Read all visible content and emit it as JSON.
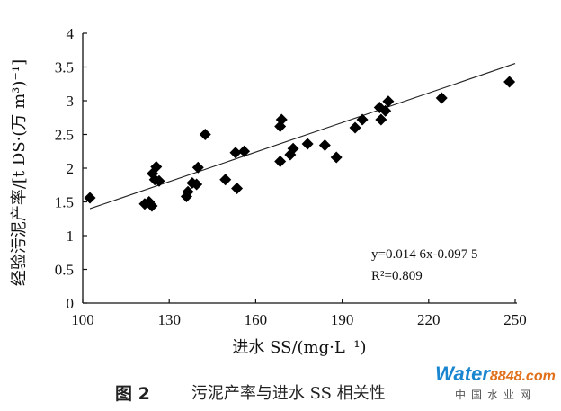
{
  "chart_data": {
    "type": "scatter",
    "xlabel": "进水 SS/(mg·L⁻¹)",
    "ylabel": "经验污泥产率/[t DS·(万 m³)⁻¹]",
    "xlim": [
      100,
      250
    ],
    "ylim": [
      0,
      4
    ],
    "x_ticks": [
      "100",
      "130",
      "160",
      "190",
      "220",
      "250"
    ],
    "y_ticks": [
      "0",
      "0.5",
      "1",
      "1.5",
      "2",
      "2.5",
      "3",
      "3.5",
      "4"
    ],
    "points": [
      [
        102.5,
        1.56
      ],
      [
        121.5,
        1.47
      ],
      [
        123.0,
        1.5
      ],
      [
        124.0,
        1.44
      ],
      [
        124.2,
        1.92
      ],
      [
        125.0,
        1.83
      ],
      [
        125.5,
        2.02
      ],
      [
        126.5,
        1.81
      ],
      [
        136.0,
        1.58
      ],
      [
        136.5,
        1.65
      ],
      [
        138.0,
        1.78
      ],
      [
        139.5,
        1.76
      ],
      [
        140.0,
        2.01
      ],
      [
        142.5,
        2.5
      ],
      [
        149.5,
        1.83
      ],
      [
        153.5,
        1.7
      ],
      [
        153.0,
        2.23
      ],
      [
        156.0,
        2.25
      ],
      [
        168.5,
        2.62
      ],
      [
        169.0,
        2.72
      ],
      [
        168.5,
        2.1
      ],
      [
        172.0,
        2.2
      ],
      [
        173.0,
        2.29
      ],
      [
        178.0,
        2.36
      ],
      [
        184.0,
        2.34
      ],
      [
        188.0,
        2.16
      ],
      [
        194.5,
        2.6
      ],
      [
        197.0,
        2.72
      ],
      [
        203.0,
        2.9
      ],
      [
        203.5,
        2.72
      ],
      [
        205.0,
        2.85
      ],
      [
        206.0,
        2.99
      ],
      [
        224.5,
        3.04
      ],
      [
        248.0,
        3.28
      ]
    ],
    "fit": {
      "slope": 0.0146,
      "intercept": -0.0975,
      "x_range": [
        102.5,
        250
      ]
    },
    "annotation": {
      "equation": "y=0.014 6x-0.097 5",
      "r2": "R²=0.809"
    },
    "grid": false,
    "legend": "none"
  },
  "caption": {
    "figure_number": "图 2",
    "text": "污泥产率与进水 SS 相关性"
  },
  "watermark": {
    "logo_text": "Water",
    "logo_number": "8848",
    "logo_suffix": ".com",
    "subtitle": "中国水业网"
  }
}
